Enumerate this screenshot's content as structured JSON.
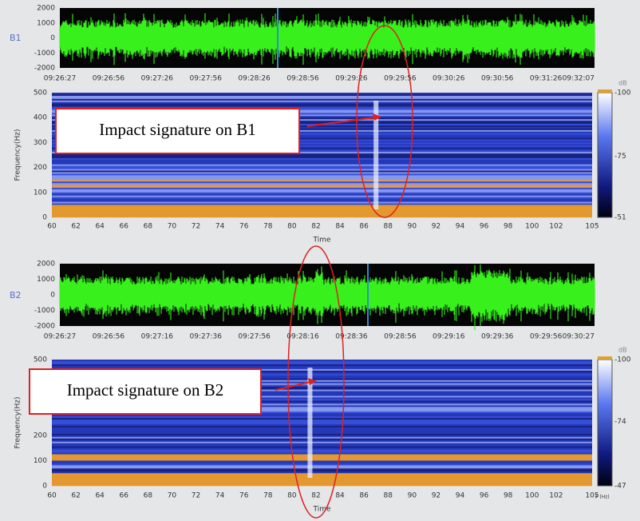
{
  "panels": [
    {
      "channel": "B1",
      "wave_yticks": [
        "2000",
        "1000",
        "0",
        "-1000",
        "-2000"
      ],
      "wave_xticks": [
        "09:26:27",
        "09:26:56",
        "09:27:26",
        "09:27:56",
        "09:28:26",
        "09:28:56",
        "09:29:26",
        "09:29:56",
        "09:30:26",
        "09:30:56",
        "09:31:26",
        "09:32:07"
      ],
      "spec_ylabel": "Frequency(Hz)",
      "spec_yticks": [
        "500",
        "400",
        "300",
        "200",
        "100",
        "0"
      ],
      "spec_xticks": [
        "60",
        "62",
        "64",
        "66",
        "68",
        "70",
        "72",
        "74",
        "76",
        "78",
        "80",
        "82",
        "84",
        "86",
        "88",
        "90",
        "92",
        "94",
        "96",
        "98",
        "100",
        "102",
        "105"
      ],
      "spec_xlabel": "Time",
      "colorbar_unit": "dB",
      "colorbar_ticks": [
        "-100",
        "-75",
        "-51"
      ],
      "annotation": "Impact signature on B1"
    },
    {
      "channel": "B2",
      "wave_yticks": [
        "2000",
        "1000",
        "0",
        "-1000",
        "-2000"
      ],
      "wave_xticks": [
        "09:26:27",
        "09:26:56",
        "09:27:16",
        "09:27:36",
        "09:27:56",
        "09:28:16",
        "09:28:36",
        "09:28:56",
        "09:29:16",
        "09:29:36",
        "09:29:56",
        "09:30:27"
      ],
      "spec_ylabel": "Frequency(Hz)",
      "spec_yticks": [
        "500",
        "400",
        "300",
        "200",
        "100",
        "0"
      ],
      "spec_xticks": [
        "60",
        "62",
        "64",
        "66",
        "68",
        "70",
        "72",
        "74",
        "76",
        "78",
        "80",
        "82",
        "84",
        "86",
        "88",
        "90",
        "92",
        "94",
        "96",
        "98",
        "100",
        "102",
        "105"
      ],
      "spec_xlabel": "Time",
      "spec_corner_label": "F (Hz)",
      "colorbar_unit": "dB",
      "colorbar_ticks": [
        "-100",
        "-74",
        "-47"
      ],
      "annotation": "Impact signature on B2"
    }
  ]
}
